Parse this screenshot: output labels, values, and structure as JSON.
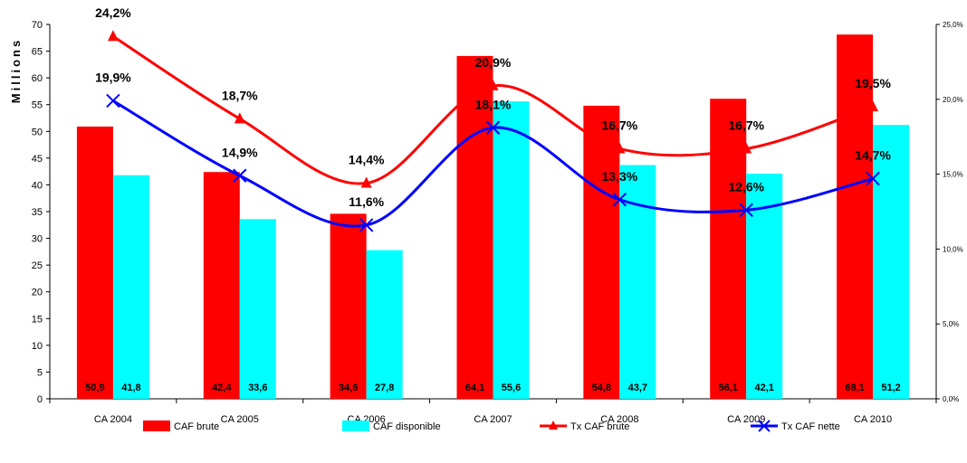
{
  "chart_data": {
    "type": "bar",
    "ylabel": "Millions",
    "categories": [
      "CA 2004",
      "CA 2005",
      "CA 2006",
      "CA 2007",
      "CA 2008",
      "CA 2009",
      "CA 2010"
    ],
    "ylim": [
      0,
      70
    ],
    "y_ticks": [
      0,
      5,
      10,
      15,
      20,
      25,
      30,
      35,
      40,
      45,
      50,
      55,
      60,
      65,
      70
    ],
    "y2lim": [
      0,
      25
    ],
    "y2_ticks": [
      0,
      5,
      10,
      15,
      20,
      25
    ],
    "y2_tick_labels": [
      "0,0%",
      "5,0%",
      "10,0%",
      "15,0%",
      "20,0%",
      "25,0%"
    ],
    "bar_series": [
      {
        "name": "CAF brute",
        "color": "#ff0000",
        "values": [
          50.9,
          42.4,
          34.6,
          64.1,
          54.8,
          56.1,
          68.1
        ],
        "labels": [
          "50,9",
          "42,4",
          "34,6",
          "64,1",
          "54,8",
          "56,1",
          "68,1"
        ]
      },
      {
        "name": "CAF disponible",
        "color": "#00ffff",
        "values": [
          41.8,
          33.6,
          27.8,
          55.6,
          43.7,
          42.1,
          51.2
        ],
        "labels": [
          "41,8",
          "33,6",
          "27,8",
          "55,6",
          "43,7",
          "42,1",
          "51,2"
        ]
      }
    ],
    "line_series": [
      {
        "name": "Tx CAF brute",
        "color": "#ff0000",
        "marker": "triangle",
        "axis": "right",
        "values": [
          24.2,
          18.7,
          14.4,
          20.9,
          16.7,
          16.7,
          19.5
        ],
        "labels": [
          "24,2%",
          "18,7%",
          "14,4%",
          "20,9%",
          "16,7%",
          "16,7%",
          "19,5%"
        ]
      },
      {
        "name": "Tx CAF nette",
        "color": "#0000ff",
        "marker": "x",
        "axis": "right",
        "values": [
          19.9,
          14.9,
          11.6,
          18.1,
          13.3,
          12.6,
          14.7
        ],
        "labels": [
          "19,9%",
          "14,9%",
          "11,6%",
          "18,1%",
          "13,3%",
          "12,6%",
          "14,7%"
        ]
      }
    ],
    "legend_position": "bottom",
    "grid": false
  }
}
